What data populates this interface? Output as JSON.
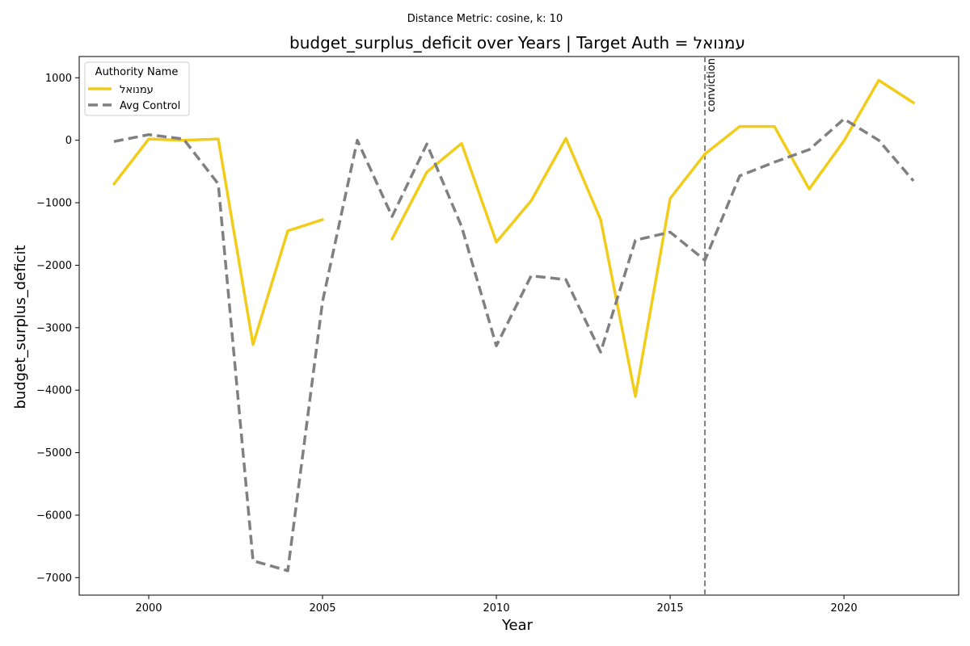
{
  "chart_data": {
    "type": "line",
    "suptitle": "Distance Metric: cosine, k: 10",
    "title": "budget_surplus_deficit over Years | Target Auth = עמנואל",
    "xlabel": "Year",
    "ylabel": "budget_surplus_deficit",
    "xlim": [
      1998,
      2023.3
    ],
    "ylim": [
      -7280,
      1340
    ],
    "xticks": [
      2000,
      2005,
      2010,
      2015,
      2020
    ],
    "yticks": [
      1000,
      0,
      -1000,
      -2000,
      -3000,
      -4000,
      -5000,
      -6000,
      -7000
    ],
    "xtick_labels": [
      "2000",
      "2005",
      "2010",
      "2015",
      "2020"
    ],
    "ytick_labels": [
      "1000",
      "0",
      "−1000",
      "−2000",
      "−3000",
      "−4000",
      "−5000",
      "−6000",
      "−7000"
    ],
    "grid": false,
    "legend": {
      "title": "Authority Name",
      "placement": "upper-left"
    },
    "series": [
      {
        "name": "עמנואל",
        "color": "#f2cc1b",
        "style": "solid",
        "points": [
          [
            1999,
            -700
          ],
          [
            2000,
            20
          ],
          [
            2001,
            0
          ],
          [
            2002,
            20
          ],
          [
            2003,
            -3270
          ],
          [
            2004,
            -1450
          ],
          [
            2005,
            -1270
          ],
          null,
          [
            2007,
            -1580
          ],
          [
            2008,
            -510
          ],
          [
            2009,
            -50
          ],
          [
            2010,
            -1630
          ],
          [
            2011,
            -970
          ],
          [
            2012,
            30
          ],
          [
            2013,
            -1270
          ],
          [
            2014,
            -4100
          ],
          [
            2015,
            -930
          ],
          [
            2016,
            -220
          ],
          [
            2017,
            220
          ],
          [
            2018,
            220
          ],
          [
            2019,
            -780
          ],
          [
            2020,
            -10
          ],
          [
            2021,
            960
          ],
          [
            2022,
            600
          ]
        ]
      },
      {
        "name": "Avg Control",
        "color": "#808080",
        "style": "dashed",
        "points": [
          [
            1999,
            -20
          ],
          [
            2000,
            90
          ],
          [
            2001,
            20
          ],
          [
            2002,
            -700
          ],
          [
            2003,
            -6730
          ],
          [
            2004,
            -6890
          ],
          [
            2005,
            -2580
          ],
          [
            2006,
            0
          ],
          [
            2007,
            -1220
          ],
          [
            2008,
            -60
          ],
          [
            2009,
            -1380
          ],
          [
            2010,
            -3290
          ],
          [
            2011,
            -2170
          ],
          [
            2012,
            -2230
          ],
          [
            2013,
            -3390
          ],
          [
            2014,
            -1600
          ],
          [
            2015,
            -1470
          ],
          [
            2016,
            -1920
          ],
          [
            2017,
            -570
          ],
          [
            2018,
            -350
          ],
          [
            2019,
            -150
          ],
          [
            2020,
            340
          ],
          [
            2021,
            0
          ],
          [
            2022,
            -650
          ]
        ]
      }
    ],
    "annotations": [
      {
        "type": "vline",
        "x": 2016,
        "label": "conviction",
        "color": "#808080",
        "style": "dashed"
      }
    ]
  }
}
